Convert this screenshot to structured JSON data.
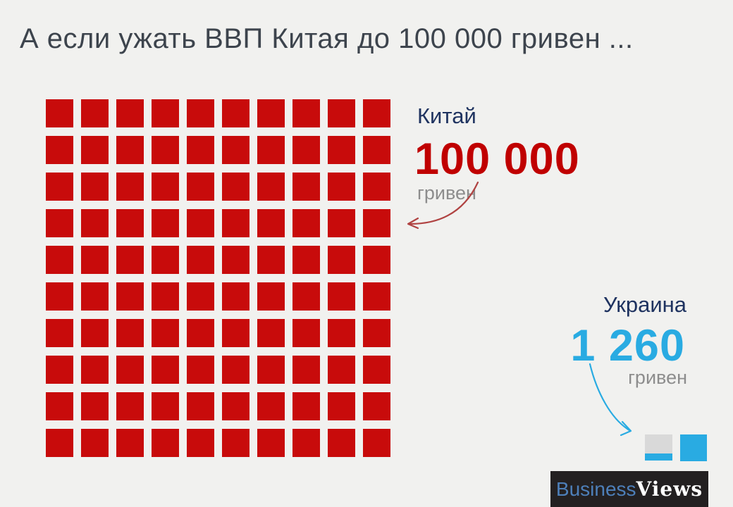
{
  "title": "А если ужать ВВП Китая до 100 000 гривен ...",
  "chart_data": {
    "type": "pictogram",
    "title": "А если ужать ВВП Китая до 100 000 гривен ...",
    "description": "Waffle pictogram comparing China's GDP scaled to 100 000 hryvnias against Ukraine's GDP of 1 260 hryvnias; each square represents 1 000 hryvnias",
    "unit_per_square": 1000,
    "grid": {
      "columns": 10,
      "rows": 10
    },
    "series": [
      {
        "name": "Китай",
        "value": 100000,
        "value_label": "100 000",
        "unit": "гривен",
        "squares_full": 100,
        "squares_fraction": 0,
        "color": "#c80b0b"
      },
      {
        "name": "Украина",
        "value": 1260,
        "value_label": "1 260",
        "unit": "гривен",
        "squares_full": 1,
        "squares_fraction": 0.26,
        "color": "#29abe2"
      }
    ],
    "legend_position": "none",
    "grid_lines": false
  },
  "logo": {
    "text_primary": "Business",
    "text_secondary": "Views"
  },
  "colors": {
    "background": "#f1f1ef",
    "title": "#3d444d",
    "navy": "#1f3360",
    "red_square": "#c80b0b",
    "red_value": "#c00000",
    "blue": "#29abe2",
    "gray_unit": "#8d8d8d",
    "partial_square_bg": "#d9d9d9",
    "logo_bg": "#232021",
    "logo_blue": "#4d7fb9",
    "red_arrow": "#b04342"
  }
}
